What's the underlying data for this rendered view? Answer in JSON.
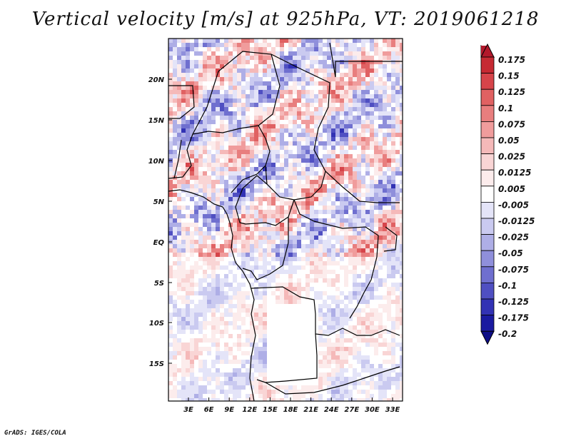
{
  "title": "Vertical velocity [m/s] at 925hPa, VT: 2019061218",
  "credit": "GrADS: IGES/COLA",
  "map": {
    "lat_labels": [
      "20N",
      "15N",
      "10N",
      "5N",
      "EQ",
      "5S",
      "10S",
      "15S"
    ],
    "lon_labels": [
      "3E",
      "6E",
      "9E",
      "12E",
      "15E",
      "18E",
      "21E",
      "24E",
      "27E",
      "30E",
      "33E"
    ]
  },
  "colorbar": {
    "labels": [
      "0.175",
      "0.15",
      "0.125",
      "0.1",
      "0.075",
      "0.05",
      "0.025",
      "0.0125",
      "0.005",
      "-0.005",
      "-0.0125",
      "-0.025",
      "-0.05",
      "-0.075",
      "-0.1",
      "-0.125",
      "-0.175",
      "-0.2"
    ],
    "colors": [
      "#b2182b",
      "#c62a33",
      "#d6444a",
      "#e06162",
      "#e87e7e",
      "#f09c9c",
      "#f5b9b9",
      "#f9d5d5",
      "#fcecec",
      "#ffffff",
      "#e4e4f8",
      "#cacaf0",
      "#aeaee6",
      "#8f8fdb",
      "#6f6fcf",
      "#4f4fc2",
      "#3232b4",
      "#1a1aa0",
      "#0d0d86"
    ]
  }
}
